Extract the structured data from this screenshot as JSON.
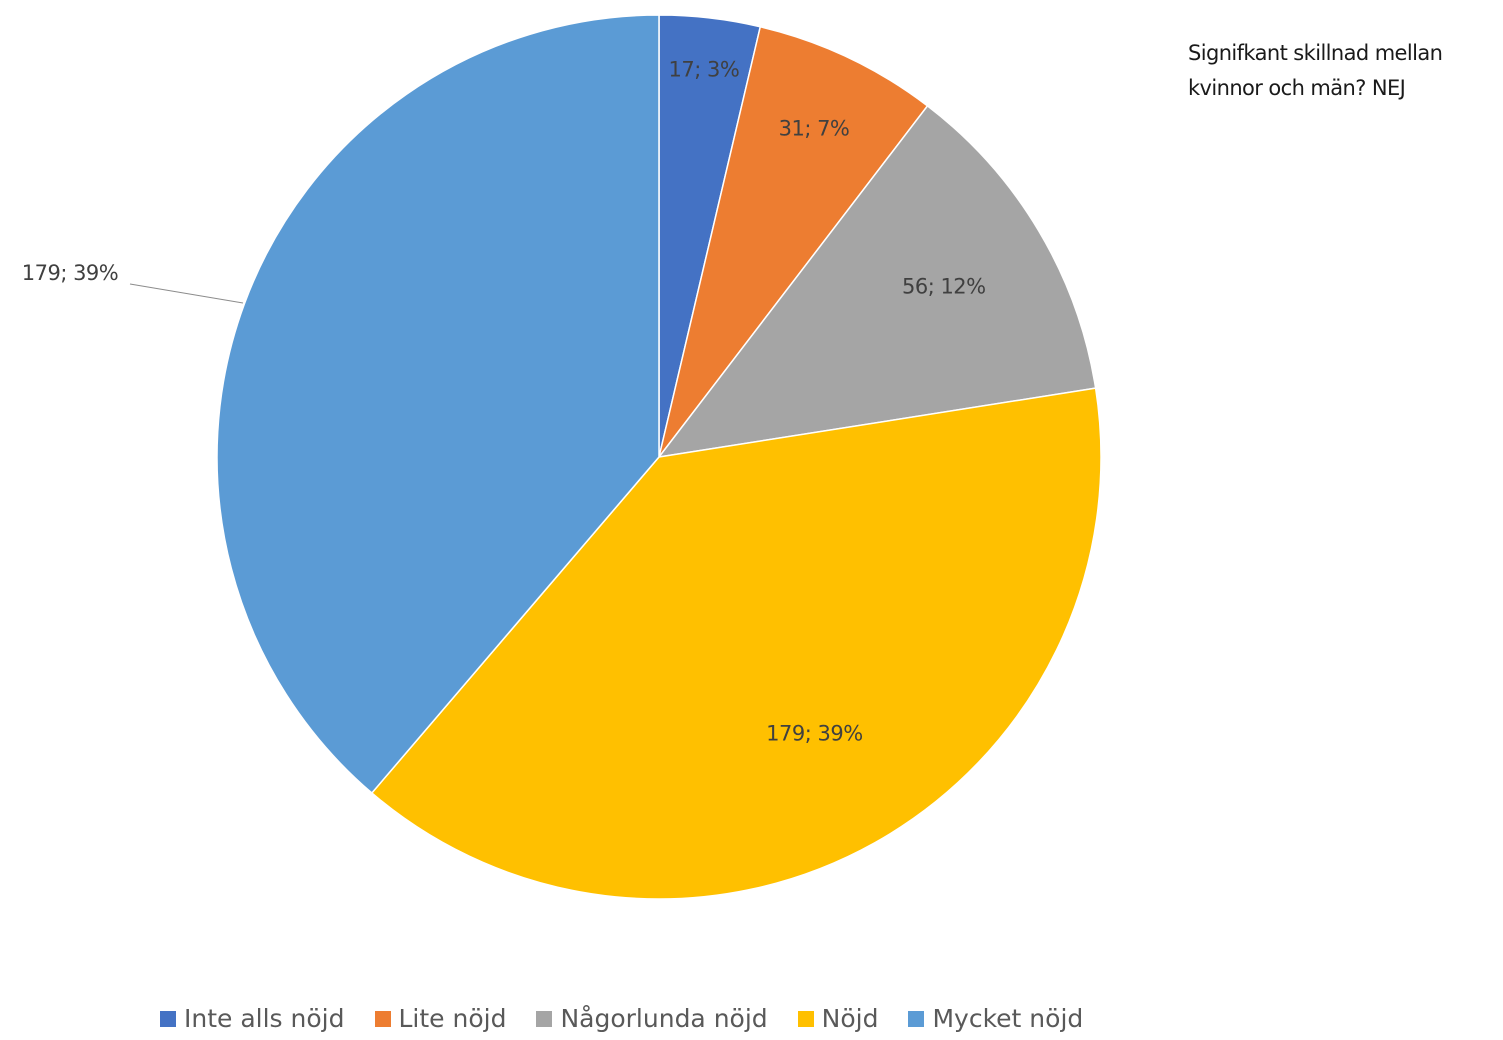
{
  "chart_data": {
    "type": "pie",
    "title": "",
    "annotation_lines": [
      "Signifkant skillnad mellan",
      "kvinnor och män? NEJ"
    ],
    "categories": [
      "Inte alls nöjd",
      "Lite nöjd",
      "Någorlunda nöjd",
      "Nöjd",
      "Mycket nöjd"
    ],
    "values": [
      17,
      31,
      56,
      179,
      179
    ],
    "percent_labels": [
      "3%",
      "7%",
      "12%",
      "39%",
      "39%"
    ],
    "data_labels": [
      "17; 3%",
      "31; 7%",
      "56; 12%",
      "179; 39%",
      "179; 39%"
    ],
    "colors": [
      "#4472C4",
      "#ED7D31",
      "#A5A5A5",
      "#FFC000",
      "#5B9BD5"
    ],
    "start_angle": "12 o'clock",
    "direction": "clockwise",
    "legend_position": "bottom"
  }
}
